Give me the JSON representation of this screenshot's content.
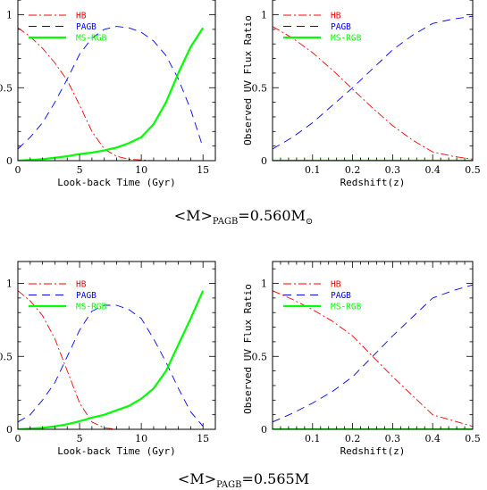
{
  "captions": [
    {
      "pre": "<M>",
      "sub": "PAGB",
      "post": "=0.560M",
      "sun": "⊙"
    },
    {
      "pre": "<M>",
      "sub": "PAGB",
      "post": "=0.565M",
      "sun": ""
    }
  ],
  "colors": {
    "HB": "#ff0000",
    "PAGB": "#0000ff",
    "MS-RGB": "#00ff00",
    "axes": "#000000"
  },
  "chart_data": [
    {
      "type": "line",
      "xlabel": "Look-back Time (Gyr)",
      "ylabel": "",
      "xlim": [
        0,
        16
      ],
      "ylim": [
        0,
        1.15
      ],
      "xticks": [
        0,
        5,
        10,
        15
      ],
      "xticklabels": [
        "0",
        "5",
        "10",
        "15"
      ],
      "yticks": [
        0,
        0.5,
        1
      ],
      "yticklabels": [
        "0",
        "0.5",
        "1"
      ],
      "legend": "top-left",
      "series": [
        {
          "name": "HB",
          "style": "dash-dot",
          "x": [
            0,
            1,
            2,
            3,
            4,
            5,
            6,
            7,
            8,
            9,
            10,
            11,
            12,
            13,
            14,
            15
          ],
          "y": [
            0.91,
            0.85,
            0.77,
            0.67,
            0.55,
            0.38,
            0.2,
            0.08,
            0.03,
            0.01,
            0.005,
            0,
            0,
            0,
            0,
            0
          ]
        },
        {
          "name": "PAGB",
          "style": "dashed",
          "x": [
            0,
            1,
            2,
            3,
            4,
            5,
            6,
            7,
            8,
            9,
            10,
            11,
            12,
            13,
            14,
            15
          ],
          "y": [
            0.08,
            0.16,
            0.26,
            0.4,
            0.56,
            0.73,
            0.84,
            0.9,
            0.92,
            0.91,
            0.88,
            0.82,
            0.72,
            0.56,
            0.35,
            0.09
          ]
        },
        {
          "name": "MS-RGB",
          "style": "solid",
          "x": [
            0,
            1,
            2,
            3,
            4,
            5,
            6,
            7,
            8,
            9,
            10,
            11,
            12,
            13,
            14,
            15
          ],
          "y": [
            0,
            0.005,
            0.01,
            0.02,
            0.03,
            0.045,
            0.055,
            0.07,
            0.09,
            0.12,
            0.16,
            0.25,
            0.4,
            0.6,
            0.78,
            0.91
          ]
        }
      ]
    },
    {
      "type": "line",
      "xlabel": "Redshift(z)",
      "ylabel": "Observed UV Flux Ratio",
      "xlim": [
        0,
        0.5
      ],
      "ylim": [
        0,
        1.15
      ],
      "xticks": [
        0.1,
        0.2,
        0.3,
        0.4,
        0.5
      ],
      "xticklabels": [
        "0.1",
        "0.2",
        "0.3",
        "0.4",
        "0.5"
      ],
      "yticks": [
        0,
        0.5,
        1
      ],
      "yticklabels": [
        "0",
        "0.5",
        "1"
      ],
      "legend": "top-left",
      "series": [
        {
          "name": "HB",
          "style": "dash-dot",
          "x": [
            0,
            0.05,
            0.1,
            0.15,
            0.2,
            0.25,
            0.3,
            0.35,
            0.4,
            0.45,
            0.5
          ],
          "y": [
            0.92,
            0.84,
            0.74,
            0.62,
            0.49,
            0.36,
            0.24,
            0.14,
            0.06,
            0.03,
            0.01
          ]
        },
        {
          "name": "PAGB",
          "style": "dashed",
          "x": [
            0,
            0.05,
            0.1,
            0.15,
            0.2,
            0.25,
            0.3,
            0.35,
            0.4,
            0.45,
            0.5
          ],
          "y": [
            0.08,
            0.16,
            0.26,
            0.38,
            0.5,
            0.63,
            0.76,
            0.86,
            0.94,
            0.97,
            0.99
          ]
        },
        {
          "name": "MS-RGB",
          "style": "solid",
          "x": [
            0,
            0.5
          ],
          "y": [
            0,
            0
          ]
        }
      ]
    },
    {
      "type": "line",
      "xlabel": "Look-back Time (Gyr)",
      "ylabel": "",
      "xlim": [
        0,
        16
      ],
      "ylim": [
        0,
        1.15
      ],
      "xticks": [
        0,
        5,
        10,
        15
      ],
      "xticklabels": [
        "0",
        "5",
        "10",
        "15"
      ],
      "yticks": [
        0,
        0.5,
        1
      ],
      "yticklabels": [
        "0",
        "0.5",
        "1"
      ],
      "legend": "top-left",
      "series": [
        {
          "name": "HB",
          "style": "dash-dot",
          "x": [
            0,
            1,
            2,
            3,
            4,
            5,
            6,
            7,
            8,
            9,
            10,
            11,
            12,
            13,
            14,
            15
          ],
          "y": [
            0.95,
            0.88,
            0.78,
            0.62,
            0.4,
            0.18,
            0.05,
            0.01,
            0,
            0,
            0,
            0,
            0,
            0,
            0,
            0
          ]
        },
        {
          "name": "PAGB",
          "style": "dashed",
          "x": [
            0,
            1,
            2,
            3,
            4,
            5,
            6,
            7,
            8,
            9,
            10,
            11,
            12,
            13,
            14,
            15
          ],
          "y": [
            0.05,
            0.1,
            0.2,
            0.32,
            0.5,
            0.68,
            0.81,
            0.85,
            0.85,
            0.82,
            0.76,
            0.62,
            0.46,
            0.28,
            0.12,
            0.02
          ]
        },
        {
          "name": "MS-RGB",
          "style": "solid",
          "x": [
            0,
            1,
            2,
            3,
            4,
            5,
            6,
            7,
            8,
            9,
            10,
            11,
            12,
            13,
            14,
            15
          ],
          "y": [
            0,
            0.005,
            0.01,
            0.02,
            0.035,
            0.055,
            0.08,
            0.1,
            0.13,
            0.16,
            0.21,
            0.28,
            0.4,
            0.58,
            0.76,
            0.95
          ]
        }
      ]
    },
    {
      "type": "line",
      "xlabel": "Redshift(z)",
      "ylabel": "Observed UV Flux Ratio",
      "xlim": [
        0,
        0.5
      ],
      "ylim": [
        0,
        1.15
      ],
      "xticks": [
        0.1,
        0.2,
        0.3,
        0.4,
        0.5
      ],
      "xticklabels": [
        "0.1",
        "0.2",
        "0.3",
        "0.4",
        "0.5"
      ],
      "yticks": [
        0,
        0.5,
        1
      ],
      "yticklabels": [
        "0",
        "0.5",
        "1"
      ],
      "legend": "top-left",
      "series": [
        {
          "name": "HB",
          "style": "dash-dot",
          "x": [
            0,
            0.05,
            0.1,
            0.15,
            0.2,
            0.25,
            0.3,
            0.35,
            0.4,
            0.45,
            0.5
          ],
          "y": [
            0.95,
            0.89,
            0.82,
            0.74,
            0.64,
            0.5,
            0.36,
            0.23,
            0.1,
            0.06,
            0.02
          ]
        },
        {
          "name": "PAGB",
          "style": "dashed",
          "x": [
            0,
            0.05,
            0.1,
            0.15,
            0.2,
            0.25,
            0.3,
            0.35,
            0.4,
            0.45,
            0.5
          ],
          "y": [
            0.05,
            0.11,
            0.18,
            0.26,
            0.36,
            0.5,
            0.64,
            0.77,
            0.9,
            0.95,
            0.99
          ]
        },
        {
          "name": "MS-RGB",
          "style": "solid",
          "x": [
            0,
            0.5
          ],
          "y": [
            0,
            0
          ]
        }
      ]
    }
  ]
}
